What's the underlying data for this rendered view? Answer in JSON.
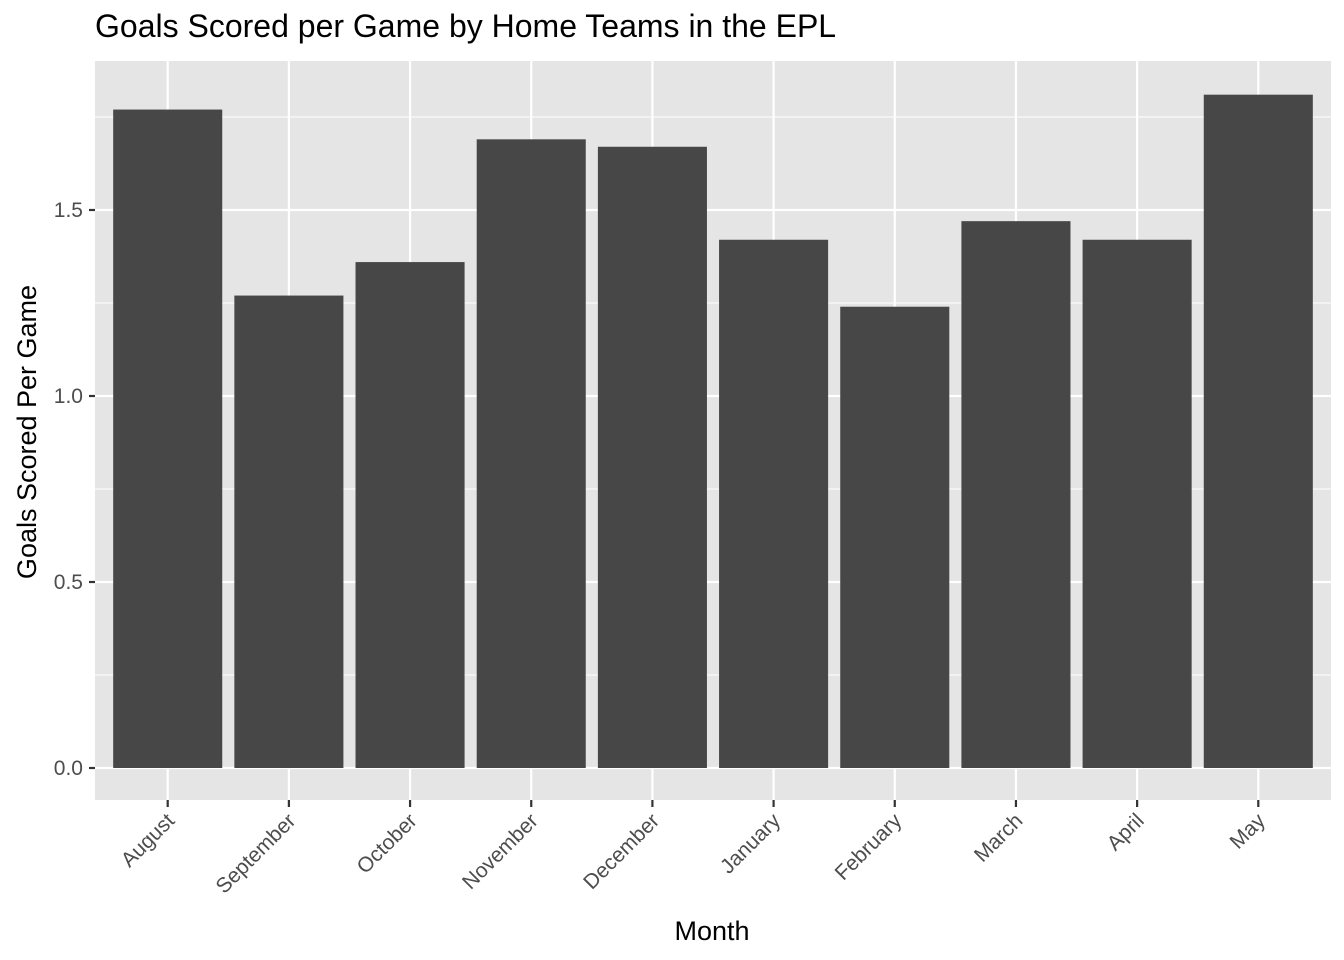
{
  "chart_data": {
    "type": "bar",
    "title": "Goals Scored per Game by Home Teams in the EPL",
    "xlabel": "Month",
    "ylabel": "Goals Scored Per Game",
    "categories": [
      "August",
      "September",
      "October",
      "November",
      "December",
      "January",
      "February",
      "March",
      "April",
      "May"
    ],
    "values": [
      1.77,
      1.27,
      1.36,
      1.69,
      1.67,
      1.42,
      1.24,
      1.47,
      1.42,
      1.81
    ],
    "yticks": [
      0.0,
      0.5,
      1.0,
      1.5
    ],
    "ytick_labels": [
      "0.0",
      "0.5",
      "1.0",
      "1.5"
    ],
    "ylim": [
      -0.088,
      1.9
    ],
    "grid": true,
    "bar_color": "#474747",
    "panel_background": "#e5e5e5",
    "grid_color": "#ffffff"
  }
}
